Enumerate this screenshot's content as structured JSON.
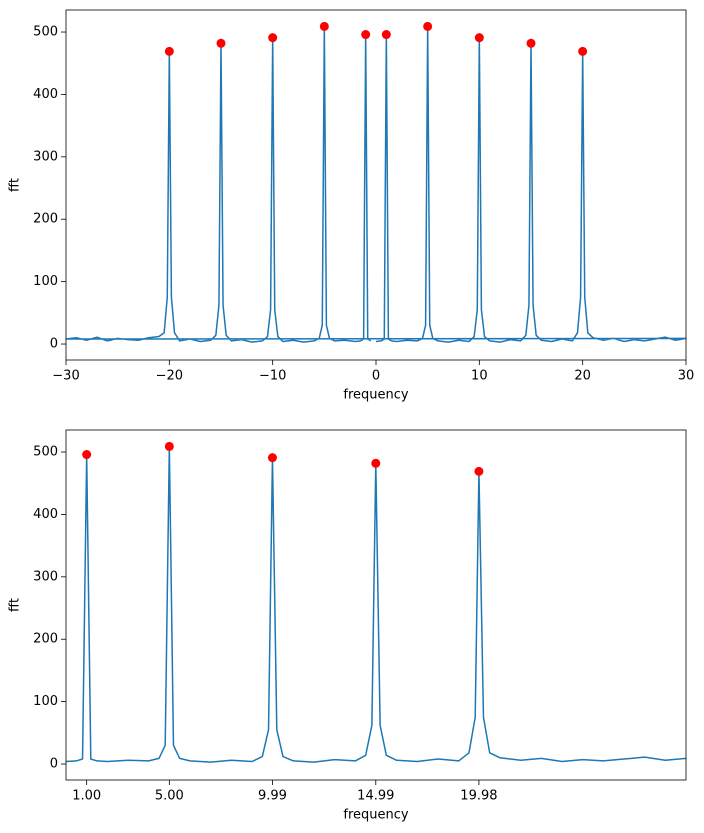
{
  "chart_data": [
    {
      "type": "line",
      "xlabel": "frequency",
      "ylabel": "fft",
      "xlim": [
        -30,
        30
      ],
      "ylim": [
        -25.6,
        535.3
      ],
      "xticks": [
        {
          "value": -30,
          "label": "−30"
        },
        {
          "value": -20,
          "label": "−20"
        },
        {
          "value": -10,
          "label": "−10"
        },
        0,
        10,
        20,
        30
      ],
      "yticks": [
        0,
        100,
        200,
        300,
        400,
        500
      ],
      "series": [
        {
          "type": "line",
          "color": "#1f77b4",
          "x": [
            0,
            0.5,
            0.8,
            1,
            1.2,
            1.5,
            2,
            3,
            4,
            4.5,
            4.8,
            5,
            5.2,
            5.5,
            6,
            7,
            8,
            9,
            9.5,
            9.8,
            10,
            10.2,
            10.5,
            11,
            12,
            13,
            14,
            14.5,
            14.8,
            15,
            15.2,
            15.5,
            16,
            17,
            18,
            19,
            19.5,
            19.8,
            20,
            20.2,
            20.5,
            21,
            22,
            23,
            24,
            25,
            26,
            27,
            28,
            29,
            30,
            -30,
            -29,
            -28,
            -27,
            -26,
            -25,
            -24,
            -23,
            -22,
            -21,
            -20.5,
            -20.2,
            -20,
            -19.8,
            -19.5,
            -19,
            -18,
            -17,
            -16,
            -15.5,
            -15.2,
            -15,
            -14.8,
            -14.5,
            -14,
            -13,
            -12,
            -11,
            -10.5,
            -10.2,
            -10,
            -9.8,
            -9.5,
            -9,
            -8,
            -7,
            -6,
            -5.5,
            -5.2,
            -5,
            -4.8,
            -4.5,
            -4,
            -3,
            -2,
            -1.5,
            -1.2,
            -1,
            -0.8,
            -0.5
          ],
          "values": [
            4,
            5,
            8,
            496,
            8,
            5,
            4,
            6,
            5,
            9,
            30,
            509,
            30,
            9,
            5,
            3,
            6,
            4,
            12,
            55,
            491,
            55,
            12,
            5,
            3,
            7,
            5,
            14,
            62,
            482,
            62,
            14,
            6,
            4,
            8,
            5,
            18,
            75,
            469,
            75,
            18,
            10,
            6,
            9,
            4,
            7,
            5,
            8,
            11,
            6,
            9,
            8,
            10,
            6,
            11,
            5,
            9,
            7,
            6,
            10,
            12,
            18,
            75,
            469,
            75,
            18,
            5,
            8,
            4,
            6,
            14,
            62,
            482,
            62,
            14,
            5,
            7,
            3,
            5,
            12,
            55,
            491,
            55,
            12,
            4,
            6,
            3,
            5,
            9,
            30,
            509,
            30,
            9,
            5,
            6,
            4,
            5,
            8,
            496,
            8,
            5
          ]
        },
        {
          "type": "scatter",
          "color": "#ff0000",
          "x": [
            -20,
            -15,
            -10,
            -5,
            -1,
            1,
            5,
            10,
            15,
            20
          ],
          "values": [
            469,
            482,
            491,
            509,
            496,
            496,
            509,
            491,
            482,
            469
          ]
        }
      ]
    },
    {
      "type": "line",
      "xlabel": "frequency",
      "ylabel": "fft",
      "xlim": [
        0,
        30
      ],
      "ylim": [
        -25.6,
        535.3
      ],
      "xticks": [
        {
          "value": 1.0,
          "label": "1.00"
        },
        {
          "value": 5.0,
          "label": "5.00"
        },
        {
          "value": 9.99,
          "label": "9.99"
        },
        {
          "value": 14.99,
          "label": "14.99"
        },
        {
          "value": 19.98,
          "label": "19.98"
        }
      ],
      "yticks": [
        0,
        100,
        200,
        300,
        400,
        500
      ],
      "series": [
        {
          "type": "line",
          "color": "#1f77b4",
          "x": [
            0,
            0.5,
            0.8,
            1,
            1.2,
            1.5,
            2,
            3,
            4,
            4.5,
            4.8,
            5,
            5.2,
            5.5,
            6,
            7,
            8,
            9,
            9.5,
            9.8,
            9.99,
            10.2,
            10.5,
            11,
            12,
            13,
            14,
            14.5,
            14.8,
            14.99,
            15.2,
            15.5,
            16,
            17,
            18,
            19,
            19.5,
            19.8,
            19.98,
            20.2,
            20.5,
            21,
            22,
            23,
            24,
            25,
            26,
            27,
            28,
            29,
            30
          ],
          "values": [
            4,
            5,
            8,
            496,
            8,
            5,
            4,
            6,
            5,
            9,
            30,
            509,
            30,
            9,
            5,
            3,
            6,
            4,
            12,
            55,
            491,
            55,
            12,
            5,
            3,
            7,
            5,
            14,
            62,
            482,
            62,
            14,
            6,
            4,
            8,
            5,
            18,
            75,
            469,
            75,
            18,
            10,
            6,
            9,
            4,
            7,
            5,
            8,
            11,
            6,
            9
          ]
        },
        {
          "type": "scatter",
          "color": "#ff0000",
          "x": [
            1.0,
            5.0,
            9.99,
            14.99,
            19.98
          ],
          "values": [
            496,
            509,
            491,
            482,
            469
          ]
        }
      ]
    }
  ]
}
